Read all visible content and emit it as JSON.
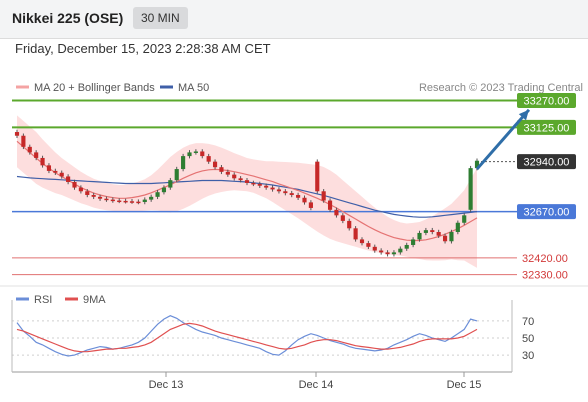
{
  "header": {
    "symbol": "Nikkei 225 (OSE)",
    "timeframe": "30 MIN"
  },
  "datetime": "Friday, December 15, 2023 2:28:38 AM CET",
  "colors": {
    "price_up": "#2e7d32",
    "price_down": "#c62828",
    "ma20": "#e57373",
    "bb_fill": "#fcd6d6",
    "ma50": "#3f5fa8",
    "resistance": "#5ba82c",
    "support": "#4a78d8",
    "target_arrow": "#2f6ea8",
    "rsi": "#6b8ed8",
    "rsi_ma": "#e05050",
    "current_price_badge": "#333333"
  },
  "chart_data": [
    {
      "type": "candlestick",
      "legend": [
        {
          "label": "MA 20 + Bollinger Bands",
          "color": "#f4a3a3"
        },
        {
          "label": "MA 50",
          "color": "#3f5fa8"
        }
      ],
      "watermark": "Research © 2023 Trading Central",
      "x_ticks": [
        "Dec 13",
        "Dec 14",
        "Dec 15"
      ],
      "ylim": [
        32290,
        33300
      ],
      "levels": [
        {
          "value": 33270,
          "label": "33270.00",
          "kind": "resistance"
        },
        {
          "value": 33125,
          "label": "33125.00",
          "kind": "resistance"
        },
        {
          "value": 32940,
          "label": "32940.00",
          "kind": "current"
        },
        {
          "value": 32670,
          "label": "32670.00",
          "kind": "pivot"
        },
        {
          "value": 32420,
          "label": "32420.00",
          "kind": "support"
        },
        {
          "value": 32330,
          "label": "32330.00",
          "kind": "support"
        }
      ],
      "target_arrow": {
        "from": [
          72,
          32900
        ],
        "to": [
          77,
          33220
        ]
      },
      "close": [
        33080,
        33020,
        32990,
        32960,
        32920,
        32890,
        32880,
        32860,
        32830,
        32800,
        32780,
        32760,
        32750,
        32740,
        32735,
        32730,
        32728,
        32726,
        32724,
        32722,
        32735,
        32750,
        32775,
        32800,
        32840,
        32900,
        32970,
        32990,
        32995,
        32970,
        32940,
        32910,
        32885,
        32870,
        32850,
        32840,
        32825,
        32820,
        32810,
        32800,
        32790,
        32780,
        32770,
        32760,
        32745,
        32720,
        32690,
        32780,
        32730,
        32680,
        32650,
        32620,
        32580,
        32520,
        32500,
        32480,
        32460,
        32450,
        32440,
        32450,
        32470,
        32490,
        32520,
        32555,
        32570,
        32560,
        32540,
        32510,
        32560,
        32610,
        32650,
        32905,
        32945
      ],
      "open": [
        33100,
        33080,
        33020,
        32990,
        32960,
        32920,
        32890,
        32880,
        32860,
        32830,
        32800,
        32780,
        32760,
        32750,
        32740,
        32735,
        32730,
        32728,
        32726,
        32724,
        32722,
        32735,
        32750,
        32775,
        32800,
        32840,
        32900,
        32970,
        32990,
        32995,
        32970,
        32940,
        32910,
        32885,
        32870,
        32850,
        32840,
        32825,
        32820,
        32810,
        32800,
        32790,
        32780,
        32770,
        32760,
        32745,
        32720,
        32940,
        32780,
        32730,
        32680,
        32650,
        32620,
        32580,
        32520,
        32500,
        32480,
        32460,
        32450,
        32440,
        32450,
        32470,
        32490,
        32520,
        32555,
        32570,
        32560,
        32540,
        32510,
        32560,
        32610,
        32680,
        32905
      ],
      "ma20": [
        33050,
        33020,
        32990,
        32960,
        32930,
        32905,
        32880,
        32860,
        32840,
        32820,
        32800,
        32785,
        32770,
        32760,
        32752,
        32746,
        32742,
        32742,
        32746,
        32752,
        32760,
        32772,
        32786,
        32800,
        32815,
        32832,
        32850,
        32866,
        32880,
        32890,
        32896,
        32898,
        32896,
        32892,
        32886,
        32878,
        32870,
        32862,
        32852,
        32842,
        32832,
        32820,
        32808,
        32796,
        32784,
        32770,
        32756,
        32742,
        32726,
        32708,
        32690,
        32670,
        32650,
        32630,
        32610,
        32590,
        32572,
        32556,
        32542,
        32530,
        32522,
        32516,
        32514,
        32514,
        32518,
        32526,
        32536,
        32548,
        32562,
        32578,
        32596,
        32616,
        32636
      ],
      "ma50": [
        32860,
        32856,
        32852,
        32850,
        32848,
        32846,
        32844,
        32842,
        32840,
        32838,
        32836,
        32834,
        32832,
        32830,
        32828,
        32826,
        32824,
        32822,
        32822,
        32822,
        32822,
        32822,
        32824,
        32826,
        32828,
        32830,
        32832,
        32834,
        32836,
        32838,
        32838,
        32838,
        32838,
        32836,
        32834,
        32832,
        32830,
        32826,
        32822,
        32818,
        32814,
        32808,
        32802,
        32796,
        32790,
        32782,
        32774,
        32766,
        32758,
        32748,
        32738,
        32728,
        32718,
        32708,
        32698,
        32688,
        32678,
        32670,
        32662,
        32655,
        32650,
        32646,
        32642,
        32640,
        32640,
        32642,
        32646,
        32650,
        32654,
        32658,
        32662,
        32666,
        32670
      ],
      "bb_width": [
        140,
        140,
        140,
        140,
        130,
        120,
        110,
        100,
        95,
        90,
        85,
        80,
        78,
        76,
        74,
        72,
        72,
        74,
        76,
        80,
        85,
        95,
        110,
        130,
        150,
        160,
        165,
        165,
        160,
        150,
        140,
        130,
        120,
        110,
        100,
        95,
        90,
        90,
        95,
        100,
        110,
        120,
        130,
        140,
        150,
        160,
        170,
        180,
        185,
        185,
        180,
        170,
        160,
        150,
        140,
        130,
        120,
        110,
        100,
        95,
        90,
        90,
        95,
        100,
        110,
        120,
        130,
        140,
        150,
        170,
        190,
        230,
        270
      ]
    },
    {
      "type": "line",
      "legend": [
        {
          "label": "RSI",
          "color": "#6b8ed8"
        },
        {
          "label": "9MA",
          "color": "#e05050"
        }
      ],
      "ylim": [
        15,
        85
      ],
      "y_ticks": [
        70,
        50,
        30
      ],
      "series": [
        {
          "name": "RSI",
          "values": [
            68,
            58,
            52,
            45,
            42,
            38,
            34,
            31,
            29,
            30,
            33,
            36,
            38,
            40,
            39,
            37,
            38,
            40,
            42,
            45,
            50,
            58,
            66,
            72,
            76,
            73,
            68,
            64,
            60,
            57,
            55,
            53,
            50,
            48,
            46,
            44,
            42,
            40,
            38,
            34,
            31,
            30,
            35,
            42,
            48,
            52,
            55,
            53,
            50,
            47,
            45,
            43,
            40,
            38,
            37,
            36,
            35,
            36,
            38,
            42,
            45,
            48,
            52,
            55,
            53,
            50,
            48,
            46,
            50,
            55,
            60,
            72,
            70
          ]
        },
        {
          "name": "9MA",
          "values": [
            60,
            58,
            55,
            52,
            49,
            46,
            43,
            40,
            37,
            35,
            34,
            34,
            35,
            36,
            37,
            37,
            38,
            38,
            39,
            40,
            42,
            45,
            50,
            55,
            60,
            63,
            66,
            67,
            66,
            64,
            61,
            58,
            56,
            54,
            52,
            50,
            48,
            46,
            44,
            42,
            40,
            38,
            37,
            38,
            40,
            42,
            45,
            47,
            48,
            48,
            47,
            45,
            43,
            41,
            40,
            39,
            38,
            37,
            37,
            38,
            39,
            41,
            43,
            46,
            48,
            49,
            49,
            49,
            49,
            50,
            52,
            56,
            60
          ]
        }
      ]
    }
  ]
}
